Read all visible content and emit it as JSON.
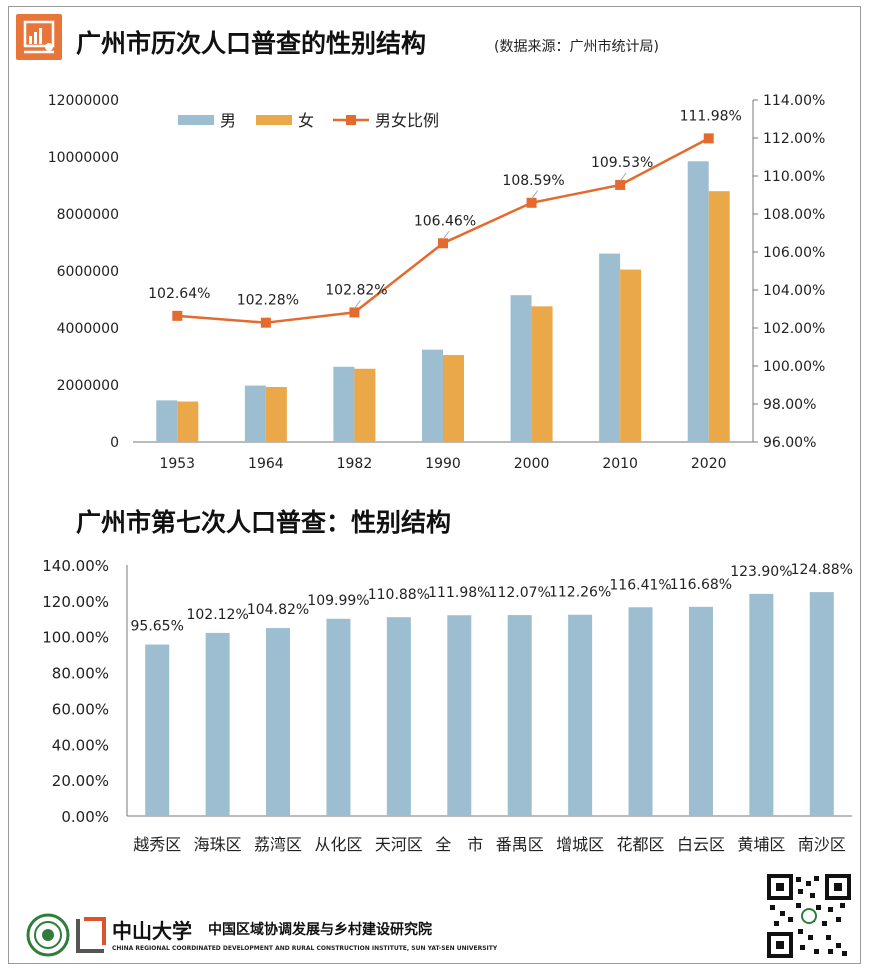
{
  "header": {
    "title": "广州市历次人口普查的性别结构",
    "source": "(数据来源：广州市统计局)"
  },
  "section2": {
    "title": "广州市第七次人口普查：性别结构"
  },
  "colors": {
    "male": "#9dbdd1",
    "female": "#eba849",
    "ratio": "#e46a2e",
    "district_bar": "#9dbdd1"
  },
  "chart_data": [
    {
      "type": "bar",
      "combo": "bar+line",
      "categories": [
        "1953",
        "1964",
        "1982",
        "1990",
        "2000",
        "2010",
        "2020"
      ],
      "series": [
        {
          "name": "男",
          "type": "bar",
          "axis": "left",
          "values": [
            1460000,
            1980000,
            2640000,
            3240000,
            5150000,
            6610000,
            9850000
          ]
        },
        {
          "name": "女",
          "type": "bar",
          "axis": "left",
          "values": [
            1420000,
            1930000,
            2570000,
            3050000,
            4760000,
            6050000,
            8800000
          ]
        },
        {
          "name": "男女比例",
          "type": "line",
          "axis": "right",
          "values": [
            102.64,
            102.28,
            102.82,
            106.46,
            108.59,
            109.53,
            111.98
          ],
          "labels": [
            "102.64%",
            "102.28%",
            "102.82%",
            "106.46%",
            "108.59%",
            "109.53%",
            "111.98%"
          ]
        }
      ],
      "ylim": [
        0,
        12000000
      ],
      "yticks": [
        "0",
        "2000000",
        "4000000",
        "6000000",
        "8000000",
        "10000000",
        "12000000"
      ],
      "y2lim": [
        96,
        114
      ],
      "y2ticks": [
        "96.00%",
        "98.00%",
        "100.00%",
        "102.00%",
        "104.00%",
        "106.00%",
        "108.00%",
        "110.00%",
        "112.00%",
        "114.00%"
      ],
      "legend": "top-left"
    },
    {
      "type": "bar",
      "categories": [
        "越秀区",
        "海珠区",
        "荔湾区",
        "从化区",
        "天河区",
        "全　市",
        "番禺区",
        "增城区",
        "花都区",
        "白云区",
        "黄埔区",
        "南沙区"
      ],
      "values": [
        95.65,
        102.12,
        104.82,
        109.99,
        110.88,
        111.98,
        112.07,
        112.26,
        116.41,
        116.68,
        123.9,
        124.88
      ],
      "labels": [
        "95.65%",
        "102.12%",
        "104.82%",
        "109.99%",
        "110.88%",
        "111.98%",
        "112.07%",
        "112.26%",
        "116.41%",
        "116.68%",
        "123.90%",
        "124.88%"
      ],
      "ylim": [
        0,
        140
      ],
      "yticks": [
        "0.00%",
        "20.00%",
        "40.00%",
        "60.00%",
        "80.00%",
        "100.00%",
        "120.00%",
        "140.00%"
      ]
    }
  ],
  "footer": {
    "university": "中山大学",
    "institute_cn": "中国区域协调发展与乡村建设研究院",
    "institute_en": "CHINA REGIONAL COORDINATED DEVELOPMENT AND RURAL CONSTRUCTION INSTITUTE, SUN YAT-SEN UNIVERSITY"
  }
}
